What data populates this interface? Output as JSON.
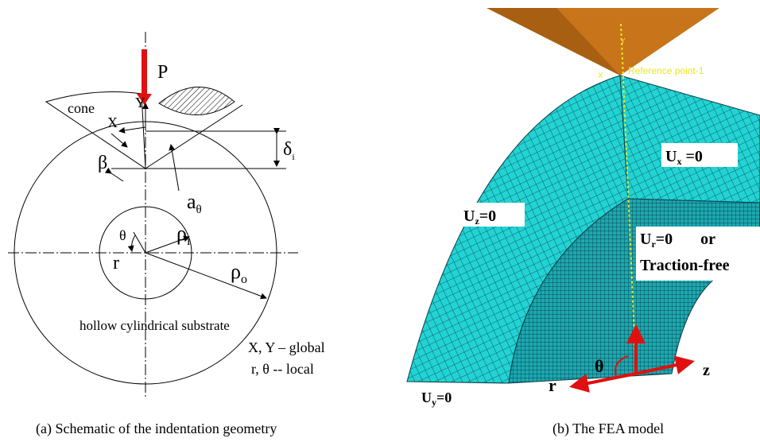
{
  "panel_a": {
    "load": "P",
    "cone": "cone",
    "axis_y": "Y",
    "axis_x": "X",
    "beta": "β",
    "delta": {
      "text": "δ",
      "sub": "i"
    },
    "contact": {
      "text": "a",
      "sub": "θ"
    },
    "theta": "θ",
    "rho_i": {
      "text": "ρ",
      "sub": "i"
    },
    "r": "r",
    "rho_o": {
      "text": "ρ",
      "sub": "o"
    },
    "substrate": "hollow cylindrical substrate",
    "note_global": "X, Y – global",
    "note_local": "r, θ -- local",
    "caption": "(a)  Schematic of the indentation geometry"
  },
  "panel_b": {
    "ref_point": "Reference point-1",
    "axis_y": "Y",
    "axis_x": "X",
    "bc_z": {
      "text": "U",
      "sub": "z",
      "rest": "=0"
    },
    "bc_x": {
      "text": "U",
      "sub": "x",
      "rest": " =0"
    },
    "bc_r": {
      "text": "U",
      "sub": "r",
      "rest": "=0       or"
    },
    "traction": "Traction-free",
    "theta": "θ",
    "r": "r",
    "z": "z",
    "bc_y": {
      "text": "U",
      "sub": "y",
      "rest": "=0"
    },
    "caption": "(b)  The FEA model"
  }
}
